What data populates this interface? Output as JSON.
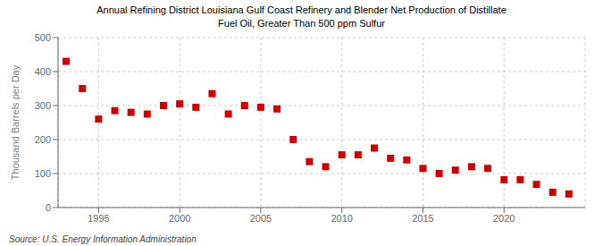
{
  "chart_data": {
    "type": "scatter",
    "title": "Annual Refining District Louisiana Gulf Coast Refinery and Blender Net Production of Distillate",
    "subtitle": "Fuel Oil, Greater Than 500 ppm Sulfur",
    "y_label": "Thousand Barrels per Day",
    "annotations": [
      "Source: U.S. Energy Information Administration"
    ],
    "x": [
      1993,
      1994,
      1995,
      1996,
      1997,
      1998,
      1999,
      2000,
      2001,
      2002,
      2003,
      2004,
      2005,
      2006,
      2007,
      2008,
      2009,
      2010,
      2011,
      2012,
      2013,
      2014,
      2015,
      2016,
      2017,
      2018,
      2019,
      2020,
      2021,
      2022,
      2023,
      2024
    ],
    "values": [
      430,
      350,
      260,
      285,
      280,
      275,
      300,
      305,
      295,
      335,
      275,
      300,
      295,
      290,
      200,
      135,
      120,
      155,
      155,
      175,
      145,
      140,
      115,
      100,
      110,
      120,
      115,
      82,
      82,
      68,
      45,
      40
    ],
    "color": "#cc0000",
    "marker": "square",
    "xlim": [
      1992.5,
      2025
    ],
    "xticks": [
      1995,
      2000,
      2005,
      2010,
      2015,
      2020
    ],
    "ylim": [
      0,
      500
    ],
    "yticks": [
      0,
      100,
      200,
      300,
      400,
      500
    ],
    "grid": true
  }
}
